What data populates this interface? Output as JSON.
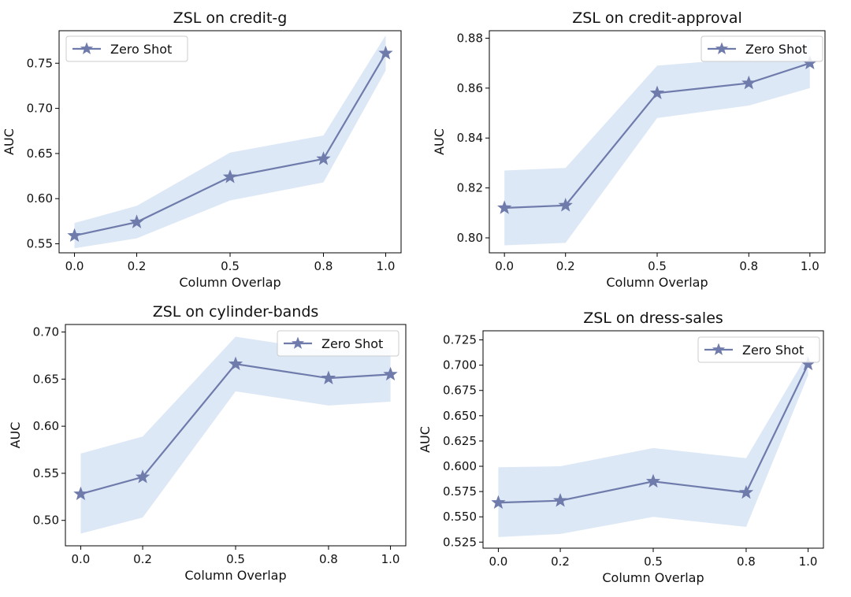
{
  "colors": {
    "line": "#6f7bab",
    "band": "#dde8f6",
    "legend_border": "#cccccc"
  },
  "chart_data": [
    {
      "type": "line",
      "title": "ZSL on credit-g",
      "xlabel": "Column Overlap",
      "ylabel": "AUC",
      "x": [
        0.0,
        0.2,
        0.5,
        0.8,
        1.0
      ],
      "xticks": [
        "0.0",
        "0.2",
        "0.5",
        "0.8",
        "1.0"
      ],
      "yticks": [
        "0.55",
        "0.60",
        "0.65",
        "0.70",
        "0.75"
      ],
      "ylim": [
        0.54,
        0.786
      ],
      "legend_position": "top-left",
      "series": [
        {
          "name": "Zero Shot",
          "marker": "star",
          "values": [
            0.559,
            0.574,
            0.624,
            0.644,
            0.761
          ],
          "lower": [
            0.545,
            0.556,
            0.598,
            0.618,
            0.742
          ],
          "upper": [
            0.573,
            0.592,
            0.651,
            0.67,
            0.781
          ]
        }
      ]
    },
    {
      "type": "line",
      "title": "ZSL on credit-approval",
      "xlabel": "Column Overlap",
      "ylabel": "AUC",
      "x": [
        0.0,
        0.2,
        0.5,
        0.8,
        1.0
      ],
      "xticks": [
        "0.0",
        "0.2",
        "0.5",
        "0.8",
        "1.0"
      ],
      "yticks": [
        "0.80",
        "0.82",
        "0.84",
        "0.86",
        "0.88"
      ],
      "ylim": [
        0.794,
        0.883
      ],
      "legend_position": "top-right",
      "series": [
        {
          "name": "Zero Shot",
          "marker": "star",
          "values": [
            0.812,
            0.813,
            0.858,
            0.862,
            0.87
          ],
          "lower": [
            0.797,
            0.798,
            0.848,
            0.853,
            0.86
          ],
          "upper": [
            0.827,
            0.828,
            0.869,
            0.872,
            0.88
          ]
        }
      ]
    },
    {
      "type": "line",
      "title": "ZSL on cylinder-bands",
      "xlabel": "Column Overlap",
      "ylabel": "AUC",
      "x": [
        0.0,
        0.2,
        0.5,
        0.8,
        1.0
      ],
      "xticks": [
        "0.0",
        "0.2",
        "0.5",
        "0.8",
        "1.0"
      ],
      "yticks": [
        "0.50",
        "0.55",
        "0.60",
        "0.65",
        "0.70"
      ],
      "ylim": [
        0.473,
        0.708
      ],
      "legend_position": "top-right",
      "series": [
        {
          "name": "Zero Shot",
          "marker": "star",
          "values": [
            0.528,
            0.546,
            0.666,
            0.651,
            0.655
          ],
          "lower": [
            0.486,
            0.503,
            0.637,
            0.622,
            0.626
          ],
          "upper": [
            0.571,
            0.589,
            0.695,
            0.68,
            0.684
          ]
        }
      ]
    },
    {
      "type": "line",
      "title": "ZSL on dress-sales",
      "xlabel": "Column Overlap",
      "ylabel": "AUC",
      "x": [
        0.0,
        0.2,
        0.5,
        0.8,
        1.0
      ],
      "xticks": [
        "0.0",
        "0.2",
        "0.5",
        "0.8",
        "1.0"
      ],
      "yticks": [
        "0.525",
        "0.550",
        "0.575",
        "0.600",
        "0.625",
        "0.650",
        "0.675",
        "0.700",
        "0.725"
      ],
      "ylim": [
        0.519,
        0.734
      ],
      "legend_position": "top-right",
      "series": [
        {
          "name": "Zero Shot",
          "marker": "star",
          "values": [
            0.564,
            0.566,
            0.585,
            0.574,
            0.701
          ],
          "lower": [
            0.53,
            0.533,
            0.55,
            0.54,
            0.69
          ],
          "upper": [
            0.599,
            0.6,
            0.618,
            0.608,
            0.712
          ]
        }
      ]
    }
  ]
}
